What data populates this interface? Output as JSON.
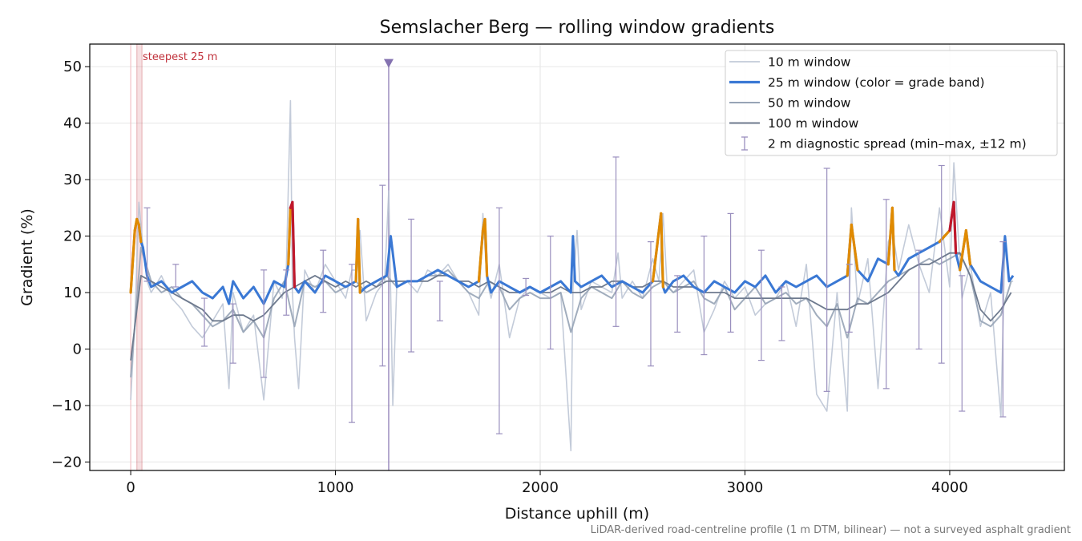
{
  "chart_data": {
    "type": "line",
    "title": "Semslacher Berg — rolling window gradients",
    "xlabel": "Distance uphill (m)",
    "ylabel": "Gradient (%)",
    "footnote": "LiDAR-derived road-centreline profile (1 m DTM, bilinear) — not a surveyed asphalt gradient",
    "xlim": [
      -200,
      4560
    ],
    "ylim": [
      -21.5,
      54
    ],
    "xticks": [
      0,
      1000,
      2000,
      3000,
      4000
    ],
    "xtick_labels": [
      "0",
      "1000",
      "2000",
      "3000",
      "4000"
    ],
    "yticks": [
      -20,
      -10,
      0,
      10,
      20,
      30,
      40,
      50
    ],
    "ytick_labels": [
      "−20",
      "−10",
      "0",
      "10",
      "20",
      "30",
      "40",
      "50"
    ],
    "grid": true,
    "legend_position": "top-right",
    "legend": [
      {
        "label": "10 m window",
        "color": "#b8c2d2",
        "style": "thin"
      },
      {
        "label": "25 m window (color = grade band)",
        "color": "#3a78d4",
        "style": "thick"
      },
      {
        "label": "50 m window",
        "color": "#97a4b6",
        "style": "medium"
      },
      {
        "label": "100 m window",
        "color": "#6e7a8e",
        "style": "medium"
      },
      {
        "label": "2 m diagnostic spread (min–max, ±12 m)",
        "color": "#9a8fbe",
        "style": "errorbar"
      }
    ],
    "steepest_annotation": {
      "label": "steepest 25 m",
      "x_start": 30,
      "x_end": 55,
      "color": "#c0303a"
    },
    "start_marker_x": 0,
    "peak_marker": {
      "x": 1260,
      "y": 50.5,
      "color": "#8472b0"
    },
    "grade_band_colors": {
      "normal": "#3a78d4",
      "above_20": "#e08a00",
      "above_25": "#c0182b"
    },
    "series": [
      {
        "name": "10 m window",
        "color": "#b8c2d2",
        "x": [
          0,
          20,
          40,
          60,
          80,
          100,
          150,
          200,
          250,
          300,
          350,
          400,
          450,
          480,
          500,
          550,
          600,
          650,
          700,
          740,
          760,
          780,
          790,
          800,
          820,
          850,
          900,
          950,
          1000,
          1050,
          1080,
          1100,
          1120,
          1150,
          1200,
          1240,
          1260,
          1280,
          1300,
          1350,
          1400,
          1450,
          1500,
          1550,
          1600,
          1650,
          1700,
          1720,
          1740,
          1760,
          1800,
          1850,
          1900,
          1950,
          2000,
          2050,
          2100,
          2150,
          2160,
          2180,
          2200,
          2250,
          2300,
          2350,
          2380,
          2400,
          2450,
          2500,
          2550,
          2580,
          2600,
          2620,
          2650,
          2700,
          2750,
          2800,
          2850,
          2900,
          2950,
          3000,
          3050,
          3100,
          3150,
          3200,
          3250,
          3300,
          3350,
          3400,
          3450,
          3500,
          3520,
          3550,
          3600,
          3650,
          3700,
          3720,
          3750,
          3800,
          3850,
          3900,
          3950,
          4000,
          4020,
          4040,
          4060,
          4100,
          4150,
          4200,
          4250,
          4270,
          4290,
          4310
        ],
        "y": [
          -9,
          5,
          26,
          18,
          12,
          10,
          13,
          9,
          7,
          4,
          2,
          5,
          8,
          -7,
          10,
          3,
          6,
          -9,
          12,
          9,
          14,
          44,
          10,
          2,
          -7,
          14,
          10,
          15,
          12,
          9,
          14,
          14,
          21,
          5,
          10,
          12,
          28,
          -10,
          12,
          12,
          10,
          14,
          13,
          15,
          12,
          10,
          6,
          24,
          12,
          9,
          15,
          2,
          9,
          11,
          10,
          9,
          10,
          -18,
          11,
          21,
          7,
          12,
          11,
          10,
          17,
          9,
          12,
          9,
          16,
          12,
          24,
          11,
          10,
          12,
          14,
          3,
          7,
          12,
          9,
          11,
          6,
          8,
          9,
          12,
          4,
          15,
          -8,
          -11,
          10,
          -11,
          25,
          8,
          16,
          -7,
          19,
          21,
          14,
          22,
          15,
          10,
          25,
          11,
          33,
          21,
          9,
          15,
          4,
          10,
          -12,
          19,
          12,
          12
        ]
      },
      {
        "name": "25 m window (color = grade band)",
        "color": "#3a78d4",
        "x": [
          0,
          20,
          30,
          40,
          50,
          60,
          80,
          100,
          150,
          200,
          250,
          300,
          350,
          400,
          450,
          480,
          500,
          550,
          600,
          650,
          700,
          750,
          770,
          780,
          790,
          800,
          820,
          850,
          900,
          950,
          1000,
          1050,
          1100,
          1110,
          1120,
          1150,
          1200,
          1250,
          1270,
          1300,
          1350,
          1400,
          1450,
          1500,
          1550,
          1600,
          1650,
          1700,
          1720,
          1730,
          1740,
          1760,
          1800,
          1850,
          1900,
          1950,
          2000,
          2050,
          2100,
          2150,
          2160,
          2170,
          2200,
          2250,
          2300,
          2350,
          2400,
          2450,
          2500,
          2550,
          2590,
          2600,
          2610,
          2650,
          2700,
          2750,
          2800,
          2850,
          2900,
          2950,
          3000,
          3050,
          3100,
          3150,
          3200,
          3250,
          3300,
          3350,
          3400,
          3450,
          3500,
          3520,
          3550,
          3600,
          3650,
          3700,
          3720,
          3730,
          3750,
          3800,
          3850,
          3900,
          3950,
          4000,
          4020,
          4030,
          4050,
          4080,
          4100,
          4150,
          4200,
          4250,
          4270,
          4290,
          4310
        ],
        "y": [
          10,
          21,
          23,
          22,
          19,
          18,
          13,
          11,
          12,
          10,
          11,
          12,
          10,
          9,
          11,
          8,
          12,
          9,
          11,
          8,
          12,
          11,
          15,
          25,
          26,
          11,
          10,
          12,
          10,
          13,
          12,
          11,
          12,
          23,
          10,
          11,
          12,
          13,
          20,
          11,
          12,
          12,
          13,
          14,
          13,
          12,
          11,
          12,
          21,
          23,
          13,
          10,
          12,
          11,
          10,
          11,
          10,
          11,
          12,
          10,
          20,
          12,
          11,
          12,
          13,
          11,
          12,
          11,
          10,
          12,
          24,
          11,
          10,
          12,
          13,
          11,
          10,
          12,
          11,
          10,
          12,
          11,
          13,
          10,
          12,
          11,
          12,
          13,
          11,
          12,
          13,
          22,
          14,
          12,
          16,
          15,
          25,
          14,
          13,
          16,
          17,
          18,
          19,
          21,
          26,
          17,
          14,
          21,
          15,
          12,
          11,
          10,
          20,
          12,
          13
        ]
      },
      {
        "name": "50 m window",
        "color": "#97a4b6",
        "x": [
          0,
          50,
          100,
          150,
          200,
          250,
          300,
          350,
          400,
          450,
          500,
          550,
          600,
          650,
          700,
          750,
          800,
          850,
          900,
          950,
          1000,
          1050,
          1100,
          1150,
          1200,
          1250,
          1300,
          1350,
          1400,
          1450,
          1500,
          1550,
          1600,
          1650,
          1700,
          1750,
          1800,
          1850,
          1900,
          1950,
          2000,
          2050,
          2100,
          2150,
          2200,
          2250,
          2300,
          2350,
          2400,
          2450,
          2500,
          2550,
          2600,
          2650,
          2700,
          2750,
          2800,
          2850,
          2900,
          2950,
          3000,
          3050,
          3100,
          3150,
          3200,
          3250,
          3300,
          3350,
          3400,
          3450,
          3500,
          3550,
          3600,
          3650,
          3700,
          3750,
          3800,
          3850,
          3900,
          3950,
          4000,
          4050,
          4100,
          4150,
          4200,
          4250,
          4300
        ],
        "y": [
          -5,
          18,
          12,
          10,
          11,
          9,
          8,
          6,
          4,
          5,
          7,
          3,
          5,
          2,
          9,
          12,
          4,
          12,
          11,
          12,
          10,
          11,
          12,
          10,
          11,
          13,
          11,
          12,
          12,
          13,
          13,
          14,
          12,
          10,
          9,
          12,
          11,
          7,
          9,
          10,
          9,
          9,
          10,
          3,
          9,
          11,
          10,
          9,
          12,
          10,
          9,
          11,
          12,
          10,
          11,
          12,
          9,
          8,
          11,
          7,
          9,
          11,
          8,
          9,
          10,
          8,
          9,
          6,
          4,
          8,
          2,
          9,
          8,
          10,
          12,
          13,
          14,
          15,
          16,
          15,
          16,
          17,
          13,
          5,
          4,
          6,
          12
        ]
      },
      {
        "name": "100 m window",
        "color": "#6e7a8e",
        "x": [
          0,
          50,
          100,
          150,
          200,
          250,
          300,
          350,
          400,
          450,
          500,
          550,
          600,
          650,
          700,
          750,
          800,
          850,
          900,
          950,
          1000,
          1050,
          1100,
          1150,
          1200,
          1250,
          1300,
          1350,
          1400,
          1450,
          1500,
          1550,
          1600,
          1650,
          1700,
          1750,
          1800,
          1850,
          1900,
          1950,
          2000,
          2050,
          2100,
          2150,
          2200,
          2250,
          2300,
          2350,
          2400,
          2450,
          2500,
          2550,
          2600,
          2650,
          2700,
          2750,
          2800,
          2850,
          2900,
          2950,
          3000,
          3050,
          3100,
          3150,
          3200,
          3250,
          3300,
          3350,
          3400,
          3450,
          3500,
          3550,
          3600,
          3650,
          3700,
          3750,
          3800,
          3850,
          3900,
          3950,
          4000,
          4050,
          4100,
          4150,
          4200,
          4250,
          4300
        ],
        "y": [
          -2,
          13,
          12,
          11,
          10,
          9,
          8,
          7,
          5,
          5,
          6,
          6,
          5,
          6,
          8,
          10,
          11,
          12,
          13,
          12,
          11,
          12,
          11,
          12,
          11,
          12,
          12,
          12,
          12,
          12,
          13,
          13,
          12,
          12,
          11,
          12,
          11,
          10,
          10,
          11,
          10,
          10,
          11,
          10,
          10,
          11,
          11,
          12,
          12,
          11,
          11,
          12,
          12,
          11,
          11,
          11,
          10,
          10,
          10,
          9,
          9,
          9,
          9,
          9,
          9,
          9,
          9,
          8,
          7,
          7,
          7,
          8,
          8,
          9,
          10,
          12,
          14,
          15,
          15,
          16,
          17,
          17,
          13,
          7,
          5,
          7,
          10
        ]
      }
    ],
    "diagnostic_spread": [
      {
        "x": 80,
        "min": 12,
        "max": 25
      },
      {
        "x": 220,
        "min": 11,
        "max": 15
      },
      {
        "x": 360,
        "min": 0.5,
        "max": 9
      },
      {
        "x": 500,
        "min": -2.5,
        "max": 8
      },
      {
        "x": 650,
        "min": -5,
        "max": 14
      },
      {
        "x": 760,
        "min": 6,
        "max": 14
      },
      {
        "x": 940,
        "min": 6.5,
        "max": 17.5
      },
      {
        "x": 1080,
        "min": -13,
        "max": 15
      },
      {
        "x": 1230,
        "min": -3,
        "max": 29
      },
      {
        "x": 1370,
        "min": -0.5,
        "max": 23
      },
      {
        "x": 1510,
        "min": 5,
        "max": 12
      },
      {
        "x": 1800,
        "min": -15,
        "max": 25
      },
      {
        "x": 1930,
        "min": 9.5,
        "max": 12.5
      },
      {
        "x": 2050,
        "min": 0,
        "max": 20
      },
      {
        "x": 2370,
        "min": 4,
        "max": 34
      },
      {
        "x": 2540,
        "min": -3,
        "max": 19
      },
      {
        "x": 2670,
        "min": 3,
        "max": 13
      },
      {
        "x": 2800,
        "min": -1,
        "max": 20
      },
      {
        "x": 2930,
        "min": 3,
        "max": 24
      },
      {
        "x": 3080,
        "min": -2,
        "max": 17.5
      },
      {
        "x": 3180,
        "min": 1.5,
        "max": 11
      },
      {
        "x": 3400,
        "min": -7.5,
        "max": 32
      },
      {
        "x": 3510,
        "min": 3,
        "max": 15
      },
      {
        "x": 3690,
        "min": -7,
        "max": 26.5
      },
      {
        "x": 3850,
        "min": 0,
        "max": 17.5
      },
      {
        "x": 3960,
        "min": -2.5,
        "max": 32.5
      },
      {
        "x": 4060,
        "min": -11,
        "max": 13
      },
      {
        "x": 4260,
        "min": -12,
        "max": 19
      }
    ]
  }
}
